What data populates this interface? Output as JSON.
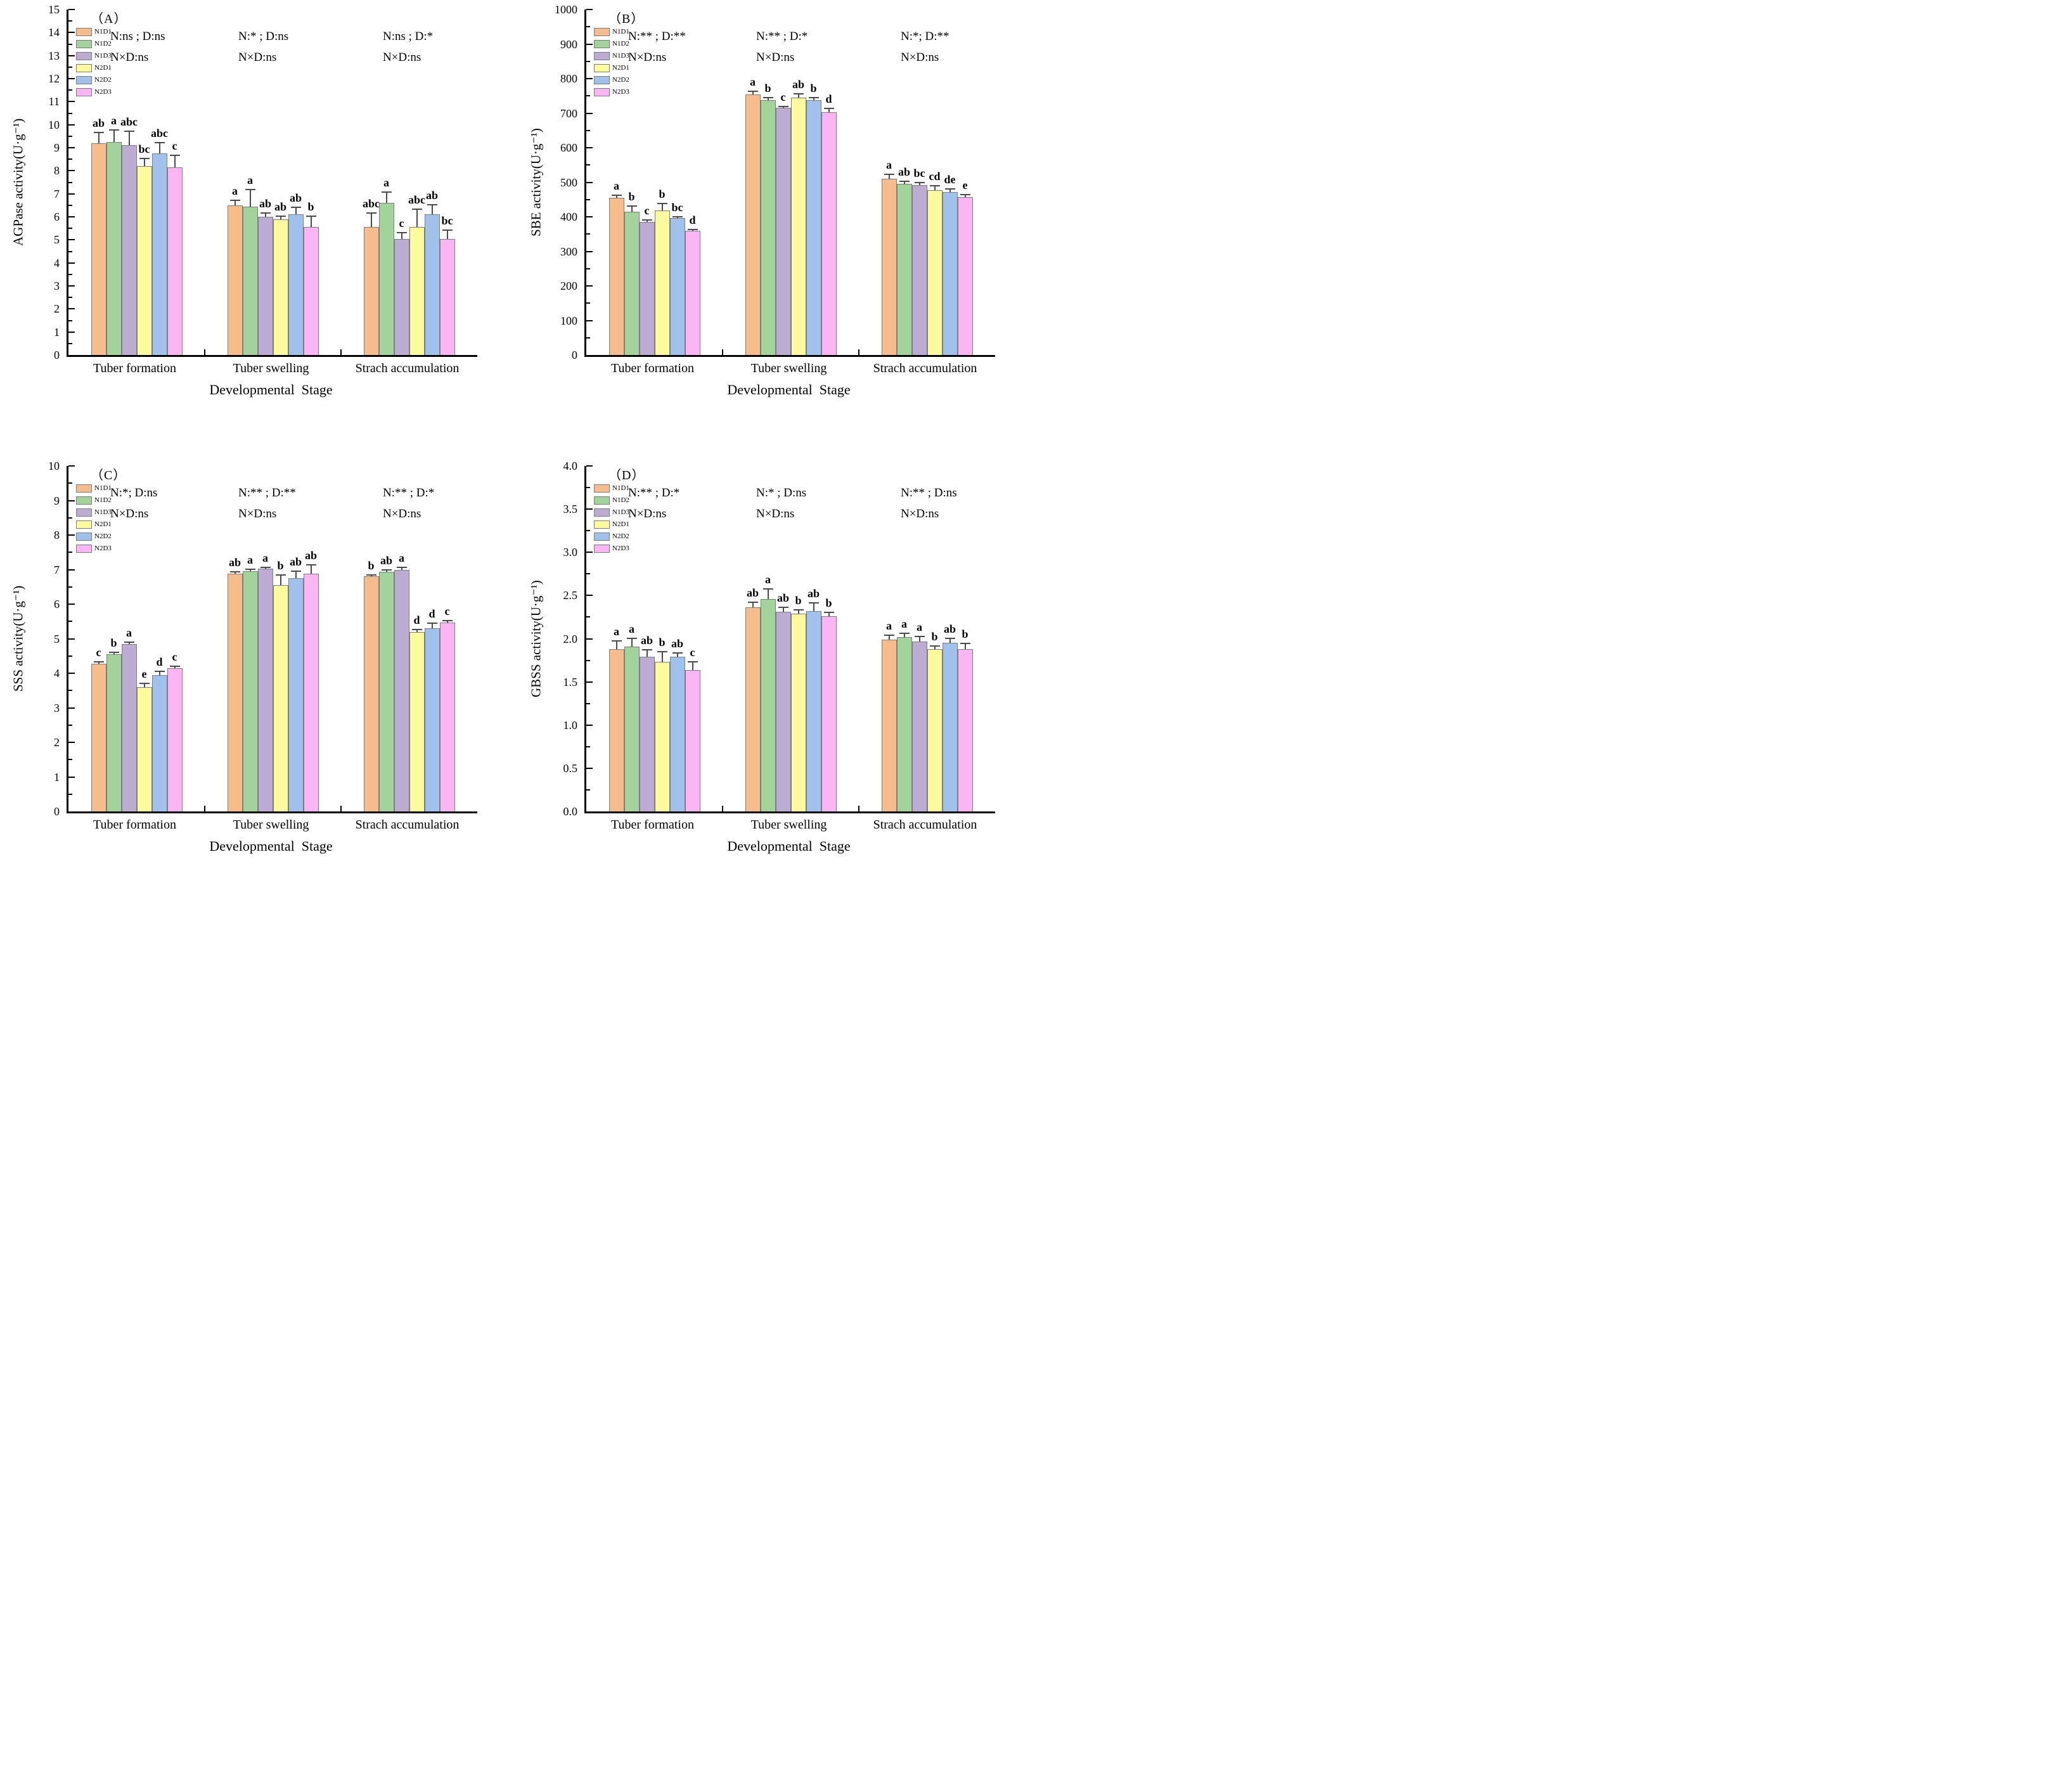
{
  "figure": {
    "x_axis_title": "Developmental  Stage",
    "categories": [
      "Tuber formation",
      "Tuber swelling",
      "Strach accumulation"
    ],
    "legend": [
      {
        "label": "N1D1",
        "color": "#F6BC8C"
      },
      {
        "label": "N1D2",
        "color": "#A2D39B"
      },
      {
        "label": "N1D3",
        "color": "#BCABD3"
      },
      {
        "label": "N2D1",
        "color": "#FBFB9D"
      },
      {
        "label": "N2D2",
        "color": "#9FC1EB"
      },
      {
        "label": "N2D3",
        "color": "#FBB5F3"
      }
    ],
    "axis_color": "#000000",
    "bar_border_color": "#7d7d7d",
    "error_bar_color": "#4a4a4a"
  },
  "chart_data": [
    {
      "id": "（A）",
      "type": "bar",
      "ylabel": "AGPase activity(U·g⁻¹)",
      "xlabel": "Developmental  Stage",
      "ylim": [
        0,
        15
      ],
      "ytick_step": 1,
      "minor_step": 0.5,
      "tick_decimals": 0,
      "categories": [
        "Tuber formation",
        "Tuber swelling",
        "Strach accumulation"
      ],
      "series": [
        "N1D1",
        "N1D2",
        "N1D3",
        "N2D1",
        "N2D2",
        "N2D3"
      ],
      "values": [
        [
          9.2,
          9.25,
          9.1,
          8.2,
          8.75,
          8.15
        ],
        [
          6.5,
          6.45,
          6.0,
          5.9,
          6.1,
          5.55
        ],
        [
          5.55,
          6.6,
          5.05,
          5.55,
          6.1,
          5.05
        ]
      ],
      "errors": [
        [
          0.5,
          0.55,
          0.65,
          0.35,
          0.5,
          0.55
        ],
        [
          0.25,
          0.75,
          0.2,
          0.15,
          0.35,
          0.5
        ],
        [
          0.65,
          0.5,
          0.3,
          0.8,
          0.45,
          0.4
        ]
      ],
      "letters": [
        [
          "ab",
          "a",
          "abc",
          "bc",
          "abc",
          "c"
        ],
        [
          "a",
          "a",
          "ab",
          "ab",
          "ab",
          "b"
        ],
        [
          "abc",
          "a",
          "c",
          "abc",
          "ab",
          "bc"
        ]
      ],
      "annotations": [
        {
          "l1": "N:ns ; D:ns",
          "l2": "N×D:ns"
        },
        {
          "l1": "N:* ; D:ns",
          "l2": "N×D:ns"
        },
        {
          "l1": "N:ns ; D:*",
          "l2": "N×D:ns"
        }
      ]
    },
    {
      "id": "（B）",
      "type": "bar",
      "ylabel": "SBE activity(U·g⁻¹)",
      "xlabel": "Developmental  Stage",
      "ylim": [
        0,
        1000
      ],
      "ytick_step": 100,
      "minor_step": 50,
      "tick_decimals": 0,
      "categories": [
        "Tuber formation",
        "Tuber swelling",
        "Strach accumulation"
      ],
      "series": [
        "N1D1",
        "N1D2",
        "N1D3",
        "N2D1",
        "N2D2",
        "N2D3"
      ],
      "values": [
        [
          455,
          415,
          385,
          418,
          397,
          360
        ],
        [
          755,
          737,
          716,
          745,
          738,
          703
        ],
        [
          510,
          495,
          492,
          478,
          472,
          457
        ]
      ],
      "errors": [
        [
          10,
          18,
          7,
          22,
          5,
          5
        ],
        [
          10,
          10,
          6,
          12,
          8,
          12
        ],
        [
          14,
          10,
          9,
          13,
          11,
          9
        ]
      ],
      "letters": [
        [
          "a",
          "b",
          "c",
          "b",
          "bc",
          "d"
        ],
        [
          "a",
          "b",
          "c",
          "ab",
          "b",
          "d"
        ],
        [
          "a",
          "ab",
          "bc",
          "cd",
          "de",
          "e"
        ]
      ],
      "annotations": [
        {
          "l1": "N:** ; D:**",
          "l2": "N×D:ns"
        },
        {
          "l1": "N:** ; D:*",
          "l2": "N×D:ns"
        },
        {
          "l1": "N:*; D:**",
          "l2": "N×D:ns"
        }
      ]
    },
    {
      "id": "（C）",
      "type": "bar",
      "ylabel": "SSS activity(U·g⁻¹)",
      "xlabel": "Developmental  Stage",
      "ylim": [
        0,
        10
      ],
      "ytick_step": 1,
      "minor_step": 0.5,
      "tick_decimals": 0,
      "categories": [
        "Tuber formation",
        "Tuber swelling",
        "Strach accumulation"
      ],
      "series": [
        "N1D1",
        "N1D2",
        "N1D3",
        "N2D1",
        "N2D2",
        "N2D3"
      ],
      "values": [
        [
          4.27,
          4.55,
          4.85,
          3.6,
          3.95,
          4.15
        ],
        [
          6.88,
          6.95,
          7.02,
          6.55,
          6.75,
          6.88
        ],
        [
          6.8,
          6.93,
          7.0,
          5.2,
          5.3,
          5.47
        ]
      ],
      "errors": [
        [
          0.07,
          0.08,
          0.07,
          0.13,
          0.12,
          0.07
        ],
        [
          0.07,
          0.07,
          0.06,
          0.32,
          0.22,
          0.28
        ],
        [
          0.06,
          0.08,
          0.09,
          0.09,
          0.16,
          0.08
        ]
      ],
      "letters": [
        [
          "c",
          "b",
          "a",
          "e",
          "d",
          "c"
        ],
        [
          "ab",
          "a",
          "a",
          "b",
          "ab",
          "ab"
        ],
        [
          "b",
          "ab",
          "a",
          "d",
          "d",
          "c"
        ]
      ],
      "annotations": [
        {
          "l1": "N:*; D:ns",
          "l2": "N×D:ns"
        },
        {
          "l1": "N:** ; D:**",
          "l2": "N×D:ns"
        },
        {
          "l1": "N:** ; D:*",
          "l2": "N×D:ns"
        }
      ]
    },
    {
      "id": "（D）",
      "type": "bar",
      "ylabel": "GBSS activity(U·g⁻¹)",
      "xlabel": "Developmental  Stage",
      "ylim": [
        0,
        4.0
      ],
      "ytick_step": 0.5,
      "minor_step": 0.25,
      "tick_decimals": 1,
      "categories": [
        "Tuber formation",
        "Tuber swelling",
        "Strach accumulation"
      ],
      "series": [
        "N1D1",
        "N1D2",
        "N1D3",
        "N2D1",
        "N2D2",
        "N2D3"
      ],
      "values": [
        [
          1.88,
          1.91,
          1.79,
          1.73,
          1.79,
          1.64
        ],
        [
          2.36,
          2.46,
          2.31,
          2.29,
          2.32,
          2.26
        ],
        [
          1.99,
          2.02,
          1.97,
          1.88,
          1.95,
          1.88
        ]
      ],
      "errors": [
        [
          0.1,
          0.1,
          0.09,
          0.13,
          0.05,
          0.1
        ],
        [
          0.07,
          0.12,
          0.06,
          0.05,
          0.1,
          0.05
        ],
        [
          0.06,
          0.05,
          0.06,
          0.04,
          0.06,
          0.07
        ]
      ],
      "letters": [
        [
          "a",
          "a",
          "ab",
          "b",
          "ab",
          "c"
        ],
        [
          "ab",
          "a",
          "ab",
          "b",
          "ab",
          "b"
        ],
        [
          "a",
          "a",
          "a",
          "b",
          "ab",
          "b"
        ]
      ],
      "annotations": [
        {
          "l1": "N:** ; D:*",
          "l2": "N×D:ns"
        },
        {
          "l1": "N:* ; D:ns",
          "l2": "N×D:ns"
        },
        {
          "l1": "N:** ; D:ns",
          "l2": "N×D:ns"
        }
      ]
    }
  ]
}
